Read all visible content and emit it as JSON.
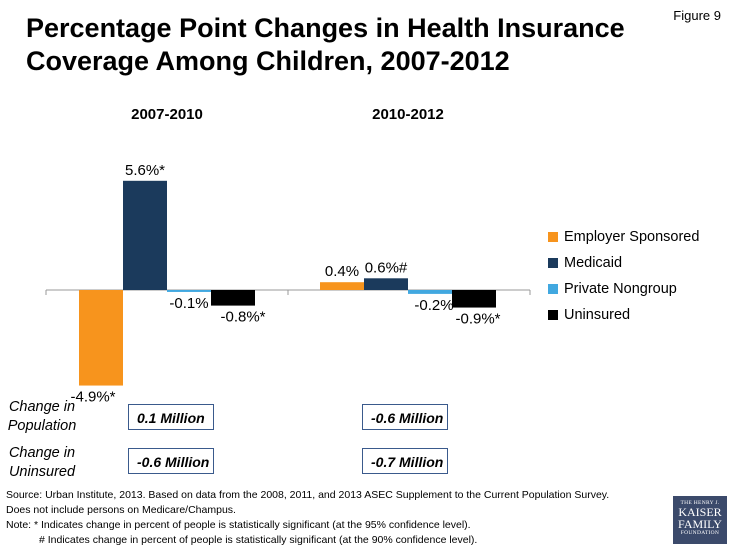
{
  "figure_label": "Figure 9",
  "title_line1": "Percentage Point Changes in Health Insurance",
  "title_line2": "Coverage Among Children, 2007-2012",
  "chart_data": {
    "type": "bar",
    "title": "Percentage Point Changes in Health Insurance Coverage Among Children, 2007-2012",
    "categories": [
      "2007-2010",
      "2010-2012"
    ],
    "series": [
      {
        "name": "Employer Sponsored",
        "color": "#f7941d",
        "values": [
          -4.9,
          0.4
        ],
        "labels": [
          "-4.9%*",
          "0.4%"
        ]
      },
      {
        "name": "Medicaid",
        "color": "#1b3a5c",
        "values": [
          5.6,
          0.6
        ],
        "labels": [
          "5.6%*",
          "0.6%#"
        ]
      },
      {
        "name": "Private Nongroup",
        "color": "#41a8e0",
        "values": [
          -0.1,
          -0.2
        ],
        "labels": [
          "-0.1%",
          "-0.2%"
        ]
      },
      {
        "name": "Uninsured",
        "color": "#000000",
        "values": [
          -0.8,
          -0.9
        ],
        "labels": [
          "-0.8%*",
          "-0.9%*"
        ]
      }
    ],
    "ylabel": "",
    "xlabel": "",
    "ylim": [
      -5,
      6
    ],
    "legend_position": "right"
  },
  "rows": {
    "population_label_1": "Change in",
    "population_label_2": "Population",
    "uninsured_label_1": "Change in",
    "uninsured_label_2": "Uninsured",
    "population_values": [
      "0.1 Million",
      "-0.6 Million"
    ],
    "uninsured_values": [
      "-0.6 Million",
      "-0.7 Million"
    ]
  },
  "source": {
    "line1": "Source: Urban Institute, 2013. Based on data from the 2008, 2011, and 2013 ASEC Supplement to the Current Population Survey.",
    "line2": "Does not include persons on Medicare/Champus.",
    "line3": "Note: * Indicates change in percent of people is statistically significant (at the 95% confidence level).",
    "line4": "# Indicates change in percent of people is statistically significant (at the 90% confidence level)."
  },
  "logo": {
    "line1": "THE HENRY J.",
    "line2": "KAISER",
    "line3": "FAMILY",
    "line4": "FOUNDATION"
  }
}
